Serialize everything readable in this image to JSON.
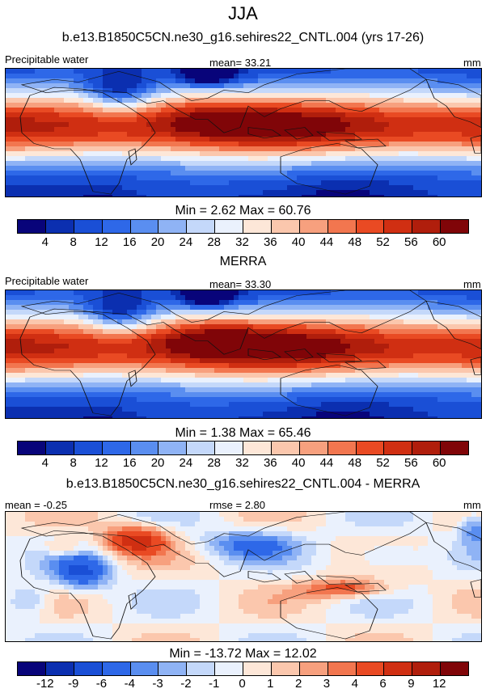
{
  "season": "JJA",
  "palette": [
    "#08047a",
    "#0b2fb0",
    "#1a4fd6",
    "#2e68e8",
    "#5a8ef0",
    "#8fb3f5",
    "#c4d8fa",
    "#eaf1fd",
    "#fde7d8",
    "#fbc7ad",
    "#f7a07e",
    "#f2764f",
    "#e94a23",
    "#d02f12",
    "#b01e0c",
    "#800508"
  ],
  "panels": [
    {
      "title": "b.e13.B1850C5CN.ne30_g16.sehires22_CNTL.004 (yrs 17-26)",
      "left_label": "Precipitable water",
      "center_label": "mean=  33.21",
      "units": "mm",
      "minmax": "Min =   2.62 Max =  60.76",
      "ticks": [
        "4",
        "8",
        "12",
        "16",
        "20",
        "24",
        "28",
        "32",
        "36",
        "40",
        "44",
        "48",
        "52",
        "56",
        "60"
      ],
      "field": "model"
    },
    {
      "title": "MERRA",
      "left_label": "Precipitable water",
      "center_label": "mean=  33.30",
      "units": "mm",
      "minmax": "Min =   1.38 Max =  65.46",
      "ticks": [
        "4",
        "8",
        "12",
        "16",
        "20",
        "24",
        "28",
        "32",
        "36",
        "40",
        "44",
        "48",
        "52",
        "56",
        "60"
      ],
      "field": "obs"
    },
    {
      "title": "b.e13.B1850C5CN.ne30_g16.sehires22_CNTL.004 - MERRA",
      "left_label": "mean =  -0.25",
      "center_label": "rmse =   2.80",
      "units": "mm",
      "minmax": "Min = -13.72 Max =  12.02",
      "ticks": [
        "-12",
        "-9",
        "-6",
        "-4",
        "-3",
        "-2",
        "-1",
        "0",
        "1",
        "2",
        "3",
        "4",
        "6",
        "9",
        "12"
      ],
      "field": "diff"
    }
  ]
}
